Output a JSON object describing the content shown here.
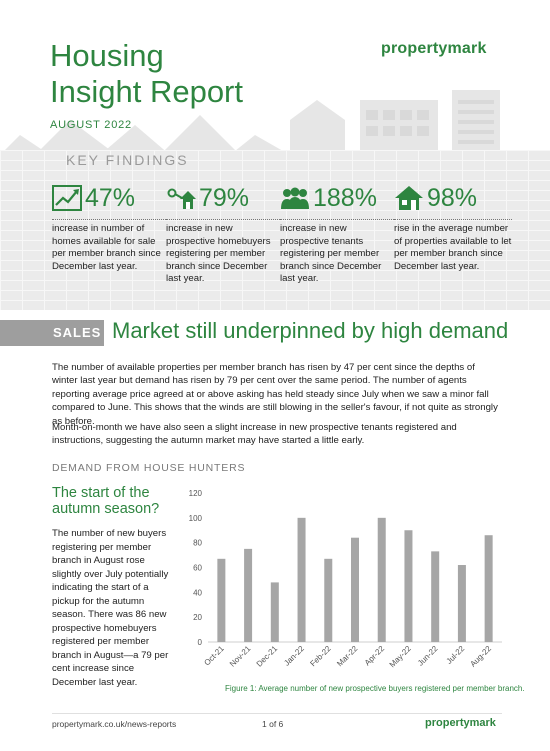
{
  "header": {
    "title_line1": "Housing",
    "title_line2": "Insight Report",
    "date": "AUGUST 2022",
    "logo": "propertymark"
  },
  "key_findings": {
    "heading": "KEY FINDINGS",
    "stats": [
      {
        "icon": "chart-up-icon",
        "value": "47%",
        "desc": "increase in number of homes available for sale per member branch since December last year."
      },
      {
        "icon": "keys-house-icon",
        "value": "79%",
        "desc": "increase in new prospective homebuyers registering per member branch since December last year."
      },
      {
        "icon": "people-icon",
        "value": "188%",
        "desc": "increase in new prospective tenants registering per member branch since December last year."
      },
      {
        "icon": "house-icon",
        "value": "98%",
        "desc": "rise in the average number of properties available to let per member branch since December last year."
      }
    ]
  },
  "sales": {
    "label": "SALES",
    "title": "Market still underpinned by high demand",
    "para1": "The number of available properties per member branch has risen by 47 per cent since the depths of winter last year but demand has risen by 79 per cent over the same period. The number of agents reporting average price agreed at or above asking has held steady since July when we saw a minor fall compared to June. This shows that the winds are still blowing in the seller's favour, if not quite as strongly as before.",
    "para2": "Month-on-month we have also seen a slight increase in new prospective tenants registered and instructions, suggesting the autumn market may have started a little early."
  },
  "demand": {
    "heading": "DEMAND FROM HOUSE HUNTERS",
    "side_title": "The start of the autumn season?",
    "side_text": "The number of new buyers registering per member branch in August rose slightly over July potentially indicating the start of a pickup for the autumn season. There was 86 new prospective homebuyers registered per member branch in August—a 79 per cent increase since December last year.",
    "caption": "Figure 1: Average number of new prospective buyers registered per member branch."
  },
  "chart_data": {
    "type": "bar",
    "categories": [
      "Oct-21",
      "Nov-21",
      "Dec-21",
      "Jan-22",
      "Feb-22",
      "Mar-22",
      "Apr-22",
      "May-22",
      "Jun-22",
      "Jul-22",
      "Aug-22"
    ],
    "values": [
      67,
      75,
      48,
      100,
      67,
      84,
      100,
      90,
      73,
      62,
      86
    ],
    "ylim": [
      0,
      120
    ],
    "yticks": [
      0,
      20,
      40,
      60,
      80,
      100,
      120
    ],
    "grid": false,
    "bar_color": "#a6a6a6"
  },
  "footer": {
    "url": "propertymark.co.uk/news-reports",
    "page": "1 of 6",
    "logo": "propertymark"
  }
}
